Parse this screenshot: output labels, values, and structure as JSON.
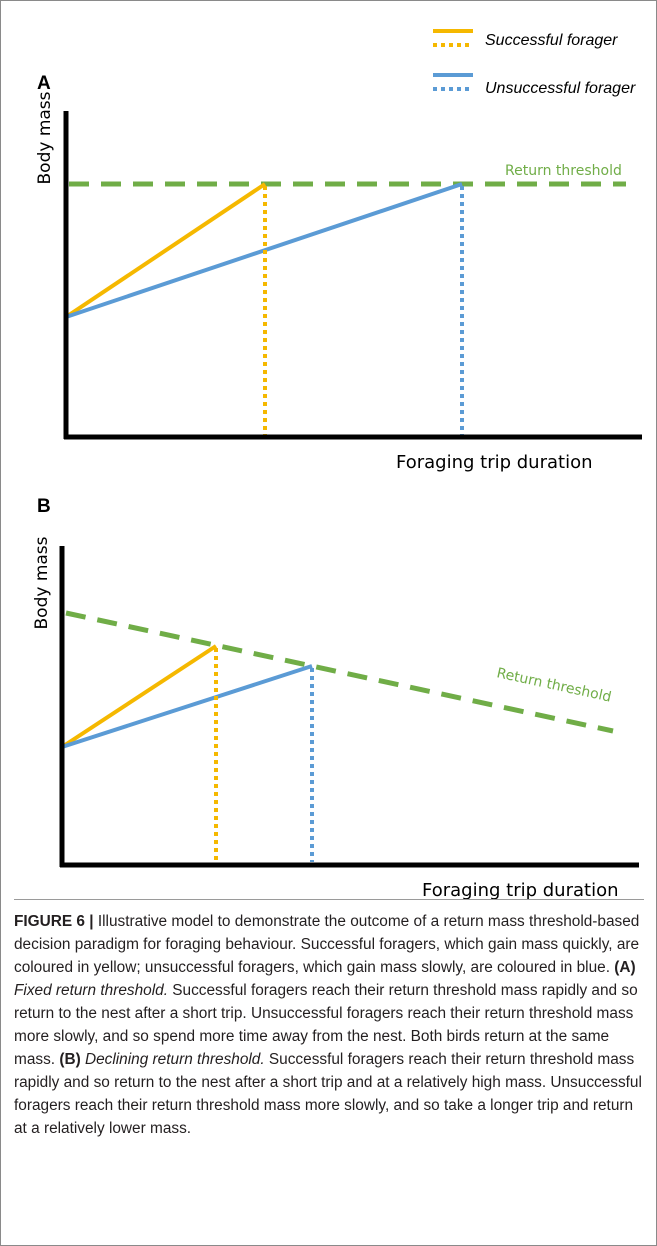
{
  "legend": {
    "successful": "Successful forager",
    "unsuccessful": "Unsuccessful forager"
  },
  "colors": {
    "successful": "#f5b800",
    "unsuccessful": "#5b9bd5",
    "threshold": "#70ad47",
    "axis": "#000000"
  },
  "panel_a": {
    "label": "A",
    "y_label": "Body mass",
    "x_label": "Foraging trip duration",
    "threshold_label": "Return threshold"
  },
  "panel_b": {
    "label": "B",
    "y_label": "Body mass",
    "x_label": "Foraging trip duration",
    "threshold_label": "Return threshold"
  },
  "caption": {
    "figure_label": "FIGURE 6 |",
    "intro": " Illustrative model to demonstrate the outcome of a return mass threshold-based decision paradigm for foraging behaviour. Successful foragers, which gain mass quickly, are coloured in yellow; unsuccessful foragers, which gain mass slowly, are coloured in blue. ",
    "a_tag": "(A)",
    "a_title": " Fixed return threshold.",
    "a_text": " Successful foragers reach their return threshold mass rapidly and so return to the nest after a short trip. Unsuccessful foragers reach their return threshold mass more slowly, and so spend more time away from the nest. Both birds return at the same mass. ",
    "b_tag": "(B)",
    "b_title": " Declining return threshold.",
    "b_text": " Successful foragers reach their return threshold mass rapidly and so return to the nest after a short trip and at a relatively high mass. Unsuccessful foragers reach their return threshold mass more slowly, and so take a longer trip and return at a relatively lower mass."
  }
}
